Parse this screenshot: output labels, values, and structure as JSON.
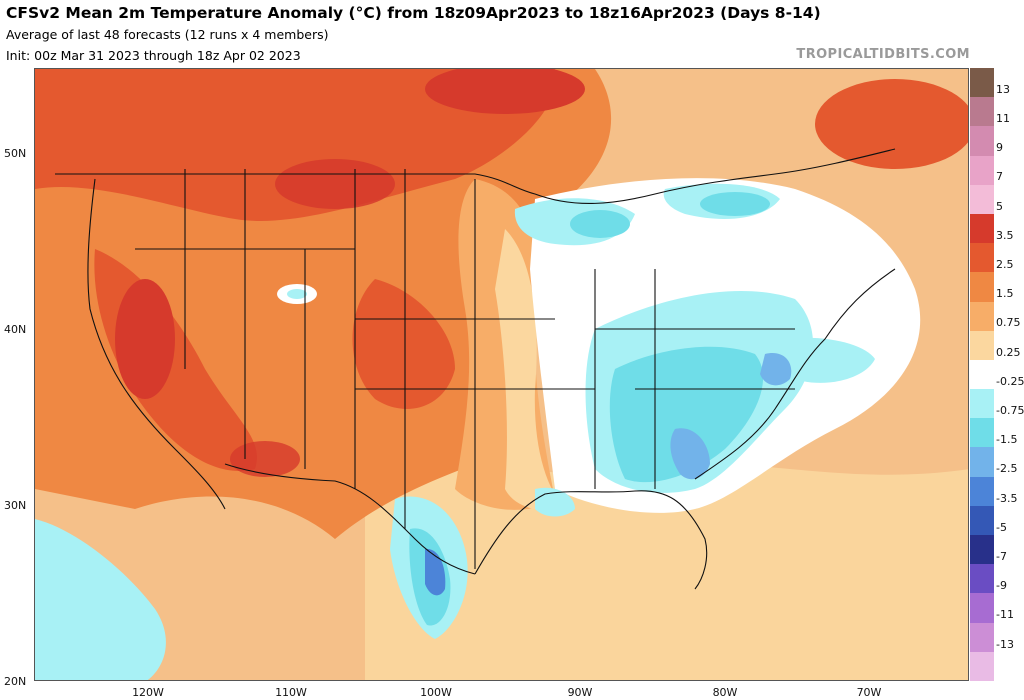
{
  "header": {
    "title": "CFSv2 Mean 2m Temperature Anomaly (°C) from 18z09Apr2023 to 18z16Apr2023 (Days 8-14)",
    "subtitle1": "Average of last 48 forecasts (12 runs x 4 members)",
    "subtitle2": "Init: 00z Mar 31 2023 through 18z Apr 02 2023",
    "brand": "TROPICALTIDBITS.COM"
  },
  "axes": {
    "lat_labels": [
      "50N",
      "40N",
      "30N",
      "20N"
    ],
    "lon_labels": [
      "120W",
      "110W",
      "100W",
      "90W",
      "80W",
      "70W"
    ]
  },
  "colorbar": {
    "labels": [
      "13",
      "11",
      "9",
      "7",
      "5",
      "3.5",
      "2.5",
      "1.5",
      "0.75",
      "0.25",
      "-0.25",
      "-0.75",
      "-1.5",
      "-2.5",
      "-3.5",
      "-5",
      "-7",
      "-9",
      "-11",
      "-13"
    ],
    "colors": [
      "#7a5a48",
      "#b97a8f",
      "#d38bb0",
      "#e8a3c8",
      "#f3bcd8",
      "#d63a2c",
      "#e4592f",
      "#ef8843",
      "#f7ad68",
      "#fbd79f",
      "#ffffff",
      "#a8f1f5",
      "#6fdde8",
      "#72b3ea",
      "#4c84d8",
      "#3458b6",
      "#28308a",
      "#6a4dc3",
      "#a76cd2",
      "#cc8ed6",
      "#e9bbe5"
    ]
  },
  "map_colors": {
    "hot": "#d63a2c",
    "warm": "#e4592f",
    "mild": "#ef8843",
    "light": "#f7ad68",
    "pale": "#fbd79f",
    "neutral": "#ffffff",
    "cool_light": "#a8f1f5",
    "cool": "#6fdde8",
    "cold": "#72b3ea",
    "colder": "#4c84d8"
  }
}
